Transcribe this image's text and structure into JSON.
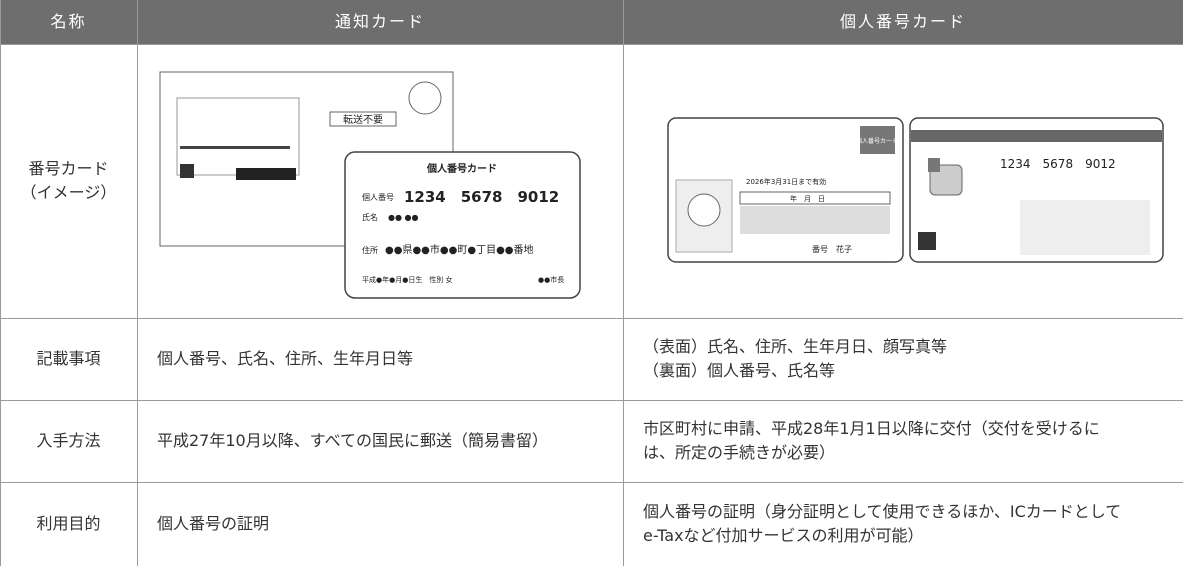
{
  "table": {
    "headers": [
      "名称",
      "通知カード",
      "個人番号カード"
    ],
    "rows": [
      {
        "label": [
          "番号カード",
          "（イメージ）"
        ],
        "notice_card": {
          "stamp": "転送不要",
          "title": "個人番号カード",
          "number_label": "個人番号",
          "number": "1234　5678　9012",
          "name_label": "氏名",
          "name": "●● ●●",
          "address_label": "住所",
          "address": "●●県●●市●●町●丁目●●番地",
          "birth": "平成●年●月●日生　性別 女",
          "issuer": "●●市長"
        },
        "my_number_card": {
          "front_badge": "個人番号カード",
          "expiry": "2026年3月31日まで有効",
          "date_box": "年　月　日",
          "holder": "番号　花子",
          "number": "1234　5678　9012"
        }
      },
      {
        "label": [
          "記載事項"
        ],
        "notice": [
          "個人番号、氏名、住所、生年月日等"
        ],
        "my_number": [
          "（表面）氏名、住所、生年月日、顔写真等",
          "（裏面）個人番号、氏名等"
        ]
      },
      {
        "label": [
          "入手方法"
        ],
        "notice": [
          "平成27年10月以降、すべての国民に郵送（簡易書留）"
        ],
        "my_number": [
          "市区町村に申請、平成28年1月1日以降に交付（交付を受けるに",
          "は、所定の手続きが必要）"
        ]
      },
      {
        "label": [
          "利用目的"
        ],
        "notice": [
          "個人番号の証明"
        ],
        "my_number": [
          "個人番号の証明（身分証明として使用できるほか、ICカードとして",
          "e-Taxなど付加サービスの利用が可能）"
        ]
      }
    ]
  }
}
